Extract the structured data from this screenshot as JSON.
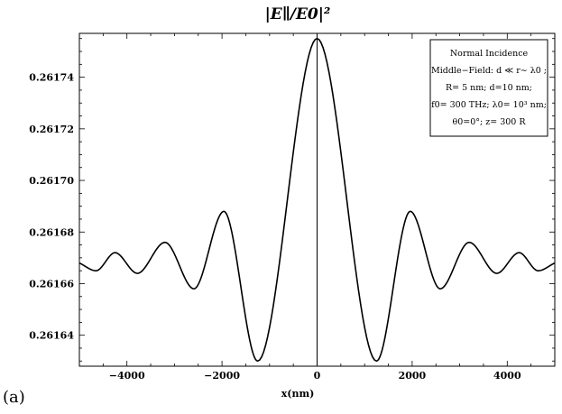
{
  "panel_label": "(a)",
  "chart_data": {
    "type": "line",
    "title": "|E∥/E0|²",
    "xlabel": "x(nm)",
    "ylabel": "",
    "xlim": [
      -5000,
      5000
    ],
    "ylim": [
      0.261628,
      0.261757
    ],
    "x_ticks": [
      -4000,
      -2000,
      0,
      2000,
      4000
    ],
    "x_tick_labels": [
      "−4000",
      "−2000",
      "0",
      "2000",
      "4000"
    ],
    "y_ticks": [
      0.26164,
      0.26166,
      0.26168,
      0.2617,
      0.26172,
      0.26174
    ],
    "y_tick_labels": [
      "0.26164",
      "0.26166",
      "0.26168",
      "0.26170",
      "0.26172",
      "0.26174"
    ],
    "grid": false,
    "line_color": "#000000",
    "series": [
      {
        "x": [
          -5000,
          -4650,
          -4250,
          -3780,
          -3200,
          -2590,
          -1960,
          -1250,
          0,
          1250,
          1960,
          2590,
          3200,
          3780,
          4250,
          4650,
          5000
        ],
        "y": [
          0.261668,
          0.261665,
          0.261672,
          0.261664,
          0.261676,
          0.261658,
          0.261688,
          0.26163,
          0.261755,
          0.26163,
          0.261688,
          0.261658,
          0.261676,
          0.261664,
          0.261672,
          0.261665,
          0.261668
        ]
      }
    ],
    "annotations": [
      {
        "type": "vertical-line",
        "x": 0
      }
    ],
    "legend_box": {
      "placement": "top-right",
      "lines": [
        "Normal Incidence",
        "Middle−Field: d ≪ r∼ λ0 ;",
        "R= 5 nm; d=10 nm;",
        "f0= 300 THz; λ0= 10³ nm;",
        "θ0=0°; z= 300 R"
      ]
    }
  }
}
